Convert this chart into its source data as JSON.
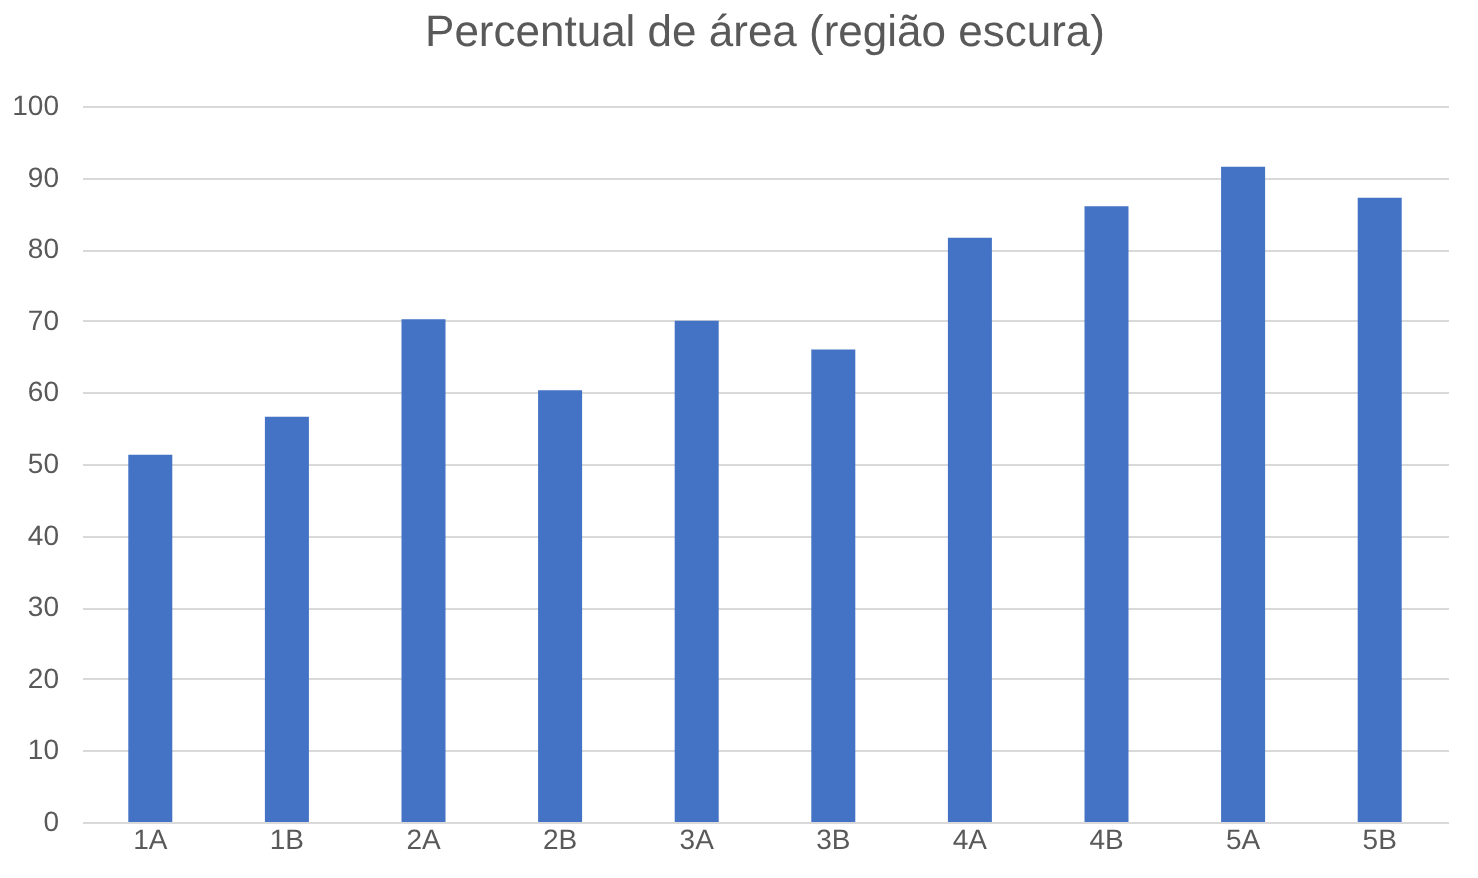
{
  "chart_data": {
    "type": "bar",
    "title": "Percentual de área (região escura)",
    "categories": [
      "1A",
      "1B",
      "2A",
      "2B",
      "3A",
      "3B",
      "4A",
      "4B",
      "5A",
      "5B"
    ],
    "values": [
      51.3,
      56.6,
      70.2,
      60.3,
      70.0,
      66.0,
      81.6,
      86.0,
      91.5,
      87.2
    ],
    "color": "#4472c4",
    "ylim": [
      0,
      100
    ],
    "yticks": [
      0,
      10,
      20,
      30,
      40,
      50,
      60,
      70,
      80,
      90,
      100
    ],
    "grid": "y"
  }
}
